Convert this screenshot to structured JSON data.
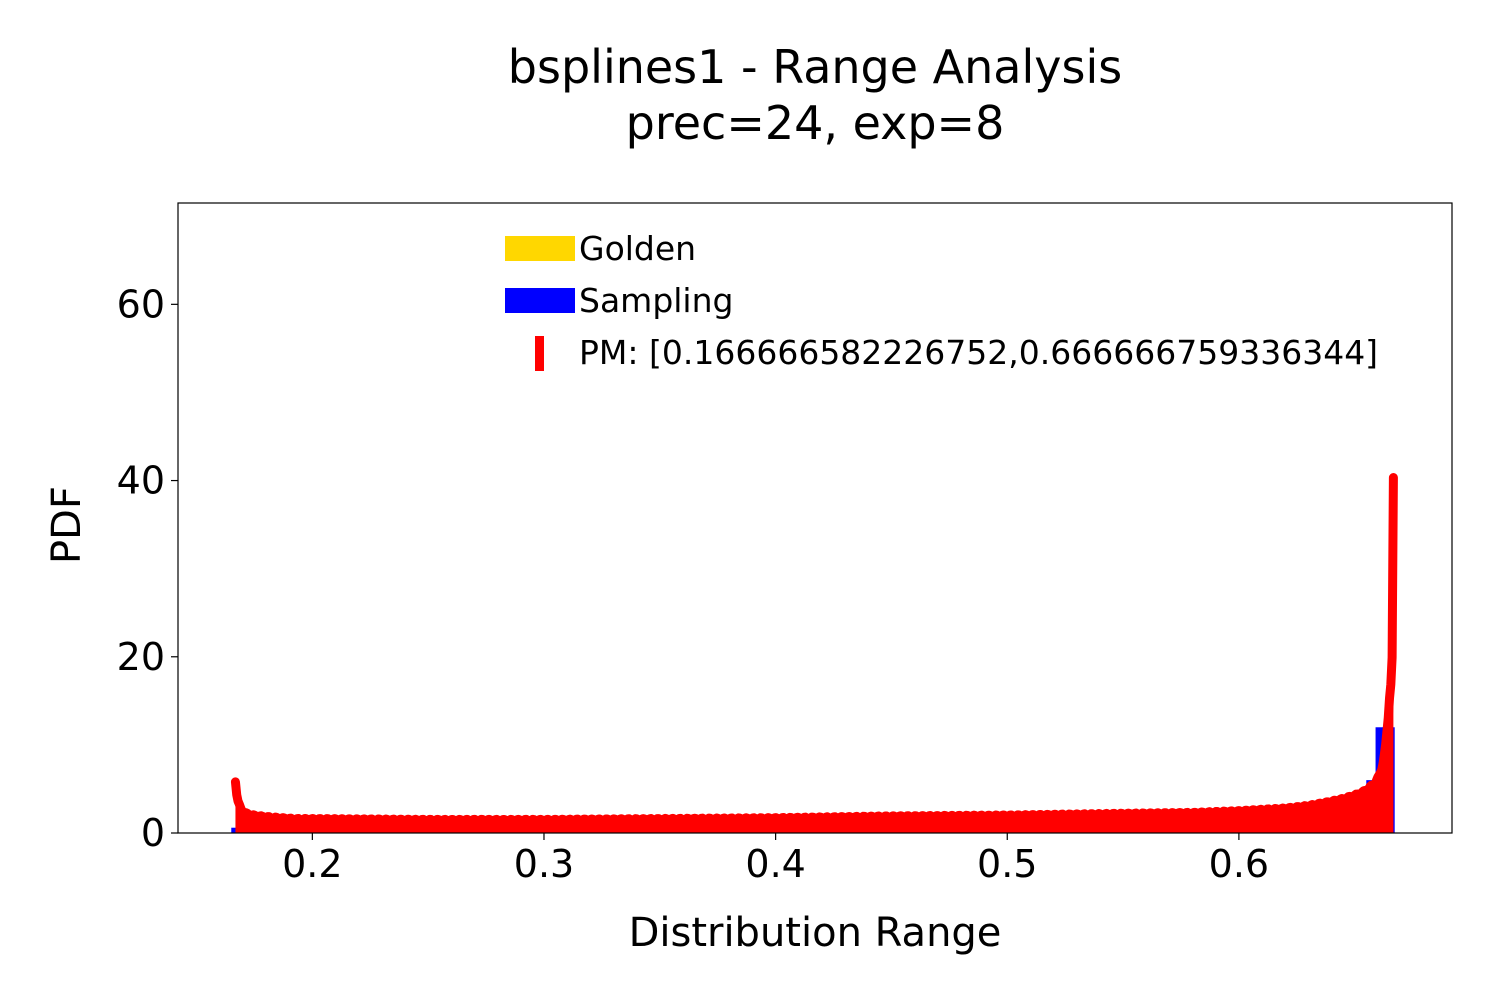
{
  "chart_data": {
    "type": "bar",
    "title": "bsplines1 - Range Analysis",
    "subtitle": "prec=24, exp=8",
    "xlabel": "Distribution Range",
    "ylabel": "PDF",
    "xlim": [
      0.142,
      0.692
    ],
    "ylim": [
      0,
      71.5
    ],
    "xticks": [
      0.2,
      0.3,
      0.4,
      0.5,
      0.6
    ],
    "xtick_labels": [
      "0.2",
      "0.3",
      "0.4",
      "0.5",
      "0.6"
    ],
    "yticks": [
      0,
      20,
      40,
      60
    ],
    "ytick_labels": [
      "0",
      "20",
      "40",
      "60"
    ],
    "grid": false,
    "legend_position": "top-center",
    "legend": {
      "golden": "Golden",
      "sampling": "Sampling",
      "pm": "PM: [0.166666582226752,0.666666759336344]"
    },
    "colors": {
      "golden": "#FFD700",
      "sampling": "#0000FF",
      "pm": "#FF0000"
    },
    "sampling_histogram": {
      "bin_width": 0.005,
      "bins": [
        [
          0.165,
          0.6
        ],
        [
          0.17,
          1.0
        ],
        [
          0.175,
          1.1
        ],
        [
          0.18,
          1.0
        ],
        [
          0.185,
          1.0
        ],
        [
          0.19,
          1.0
        ],
        [
          0.195,
          1.0
        ],
        [
          0.2,
          1.0
        ],
        [
          0.205,
          1.0
        ],
        [
          0.21,
          1.0
        ],
        [
          0.215,
          1.0
        ],
        [
          0.22,
          1.0
        ],
        [
          0.225,
          1.0
        ],
        [
          0.23,
          1.0
        ],
        [
          0.235,
          1.0
        ],
        [
          0.24,
          1.0
        ],
        [
          0.245,
          1.0
        ],
        [
          0.25,
          1.0
        ],
        [
          0.255,
          1.0
        ],
        [
          0.26,
          1.0
        ],
        [
          0.265,
          1.0
        ],
        [
          0.27,
          1.0
        ],
        [
          0.275,
          1.0
        ],
        [
          0.28,
          1.0
        ],
        [
          0.285,
          1.0
        ],
        [
          0.29,
          1.0
        ],
        [
          0.295,
          1.0
        ],
        [
          0.3,
          1.0
        ],
        [
          0.305,
          1.0
        ],
        [
          0.31,
          1.0
        ],
        [
          0.315,
          1.0
        ],
        [
          0.32,
          1.0
        ],
        [
          0.325,
          1.0
        ],
        [
          0.33,
          1.0
        ],
        [
          0.335,
          1.0
        ],
        [
          0.34,
          1.0
        ],
        [
          0.345,
          1.0
        ],
        [
          0.35,
          1.0
        ],
        [
          0.355,
          1.0
        ],
        [
          0.36,
          1.0
        ],
        [
          0.365,
          1.0
        ],
        [
          0.37,
          1.0
        ],
        [
          0.375,
          1.0
        ],
        [
          0.38,
          1.0
        ],
        [
          0.385,
          1.0
        ],
        [
          0.39,
          1.0
        ],
        [
          0.395,
          1.0
        ],
        [
          0.4,
          1.0
        ],
        [
          0.405,
          1.0
        ],
        [
          0.41,
          1.0
        ],
        [
          0.415,
          1.0
        ],
        [
          0.42,
          1.0
        ],
        [
          0.425,
          1.0
        ],
        [
          0.43,
          1.0
        ],
        [
          0.435,
          1.0
        ],
        [
          0.44,
          1.0
        ],
        [
          0.445,
          1.0
        ],
        [
          0.45,
          1.0
        ],
        [
          0.455,
          1.1
        ],
        [
          0.46,
          1.1
        ],
        [
          0.465,
          1.1
        ],
        [
          0.47,
          1.1
        ],
        [
          0.475,
          1.1
        ],
        [
          0.48,
          1.1
        ],
        [
          0.485,
          1.1
        ],
        [
          0.49,
          1.2
        ],
        [
          0.495,
          1.2
        ],
        [
          0.5,
          1.2
        ],
        [
          0.505,
          1.2
        ],
        [
          0.51,
          1.2
        ],
        [
          0.515,
          1.3
        ],
        [
          0.52,
          1.3
        ],
        [
          0.525,
          1.3
        ],
        [
          0.53,
          1.3
        ],
        [
          0.535,
          1.4
        ],
        [
          0.54,
          1.4
        ],
        [
          0.545,
          1.4
        ],
        [
          0.55,
          1.5
        ],
        [
          0.555,
          1.5
        ],
        [
          0.56,
          1.5
        ],
        [
          0.565,
          1.6
        ],
        [
          0.57,
          1.6
        ],
        [
          0.575,
          1.7
        ],
        [
          0.58,
          1.7
        ],
        [
          0.585,
          1.8
        ],
        [
          0.59,
          1.8
        ],
        [
          0.595,
          1.9
        ],
        [
          0.6,
          2.0
        ],
        [
          0.605,
          2.1
        ],
        [
          0.61,
          2.2
        ],
        [
          0.615,
          2.3
        ],
        [
          0.62,
          2.4
        ],
        [
          0.625,
          2.6
        ],
        [
          0.63,
          2.8
        ],
        [
          0.635,
          3.0
        ],
        [
          0.64,
          3.3
        ],
        [
          0.645,
          3.7
        ],
        [
          0.65,
          4.3
        ],
        [
          0.655,
          6.0
        ],
        [
          0.659,
          12.0
        ],
        [
          0.662,
          12.0
        ]
      ]
    },
    "pm_curve": {
      "x": [
        0.1668,
        0.167,
        0.1675,
        0.168,
        0.169,
        0.17,
        0.171,
        0.172,
        0.173,
        0.175,
        0.178,
        0.182,
        0.187,
        0.193,
        0.2,
        0.25,
        0.3,
        0.35,
        0.4,
        0.45,
        0.5,
        0.55,
        0.58,
        0.6,
        0.62,
        0.63,
        0.64,
        0.645,
        0.65,
        0.653,
        0.656,
        0.659,
        0.661,
        0.6625,
        0.6635,
        0.6645,
        0.6652,
        0.6658,
        0.6662,
        0.6664,
        0.6666,
        0.6667
      ],
      "y": [
        5.8,
        5.0,
        3.8,
        3.2,
        2.6,
        2.2,
        2.0,
        1.9,
        1.8,
        1.7,
        1.6,
        1.5,
        1.4,
        1.3,
        1.3,
        1.2,
        1.2,
        1.3,
        1.4,
        1.6,
        1.7,
        1.9,
        2.0,
        2.2,
        2.5,
        2.8,
        3.3,
        3.6,
        4.0,
        4.3,
        4.8,
        5.5,
        6.5,
        8.0,
        10.0,
        13.0,
        16.0,
        17.0,
        20.0,
        30.0,
        40.0,
        40.0
      ]
    }
  }
}
